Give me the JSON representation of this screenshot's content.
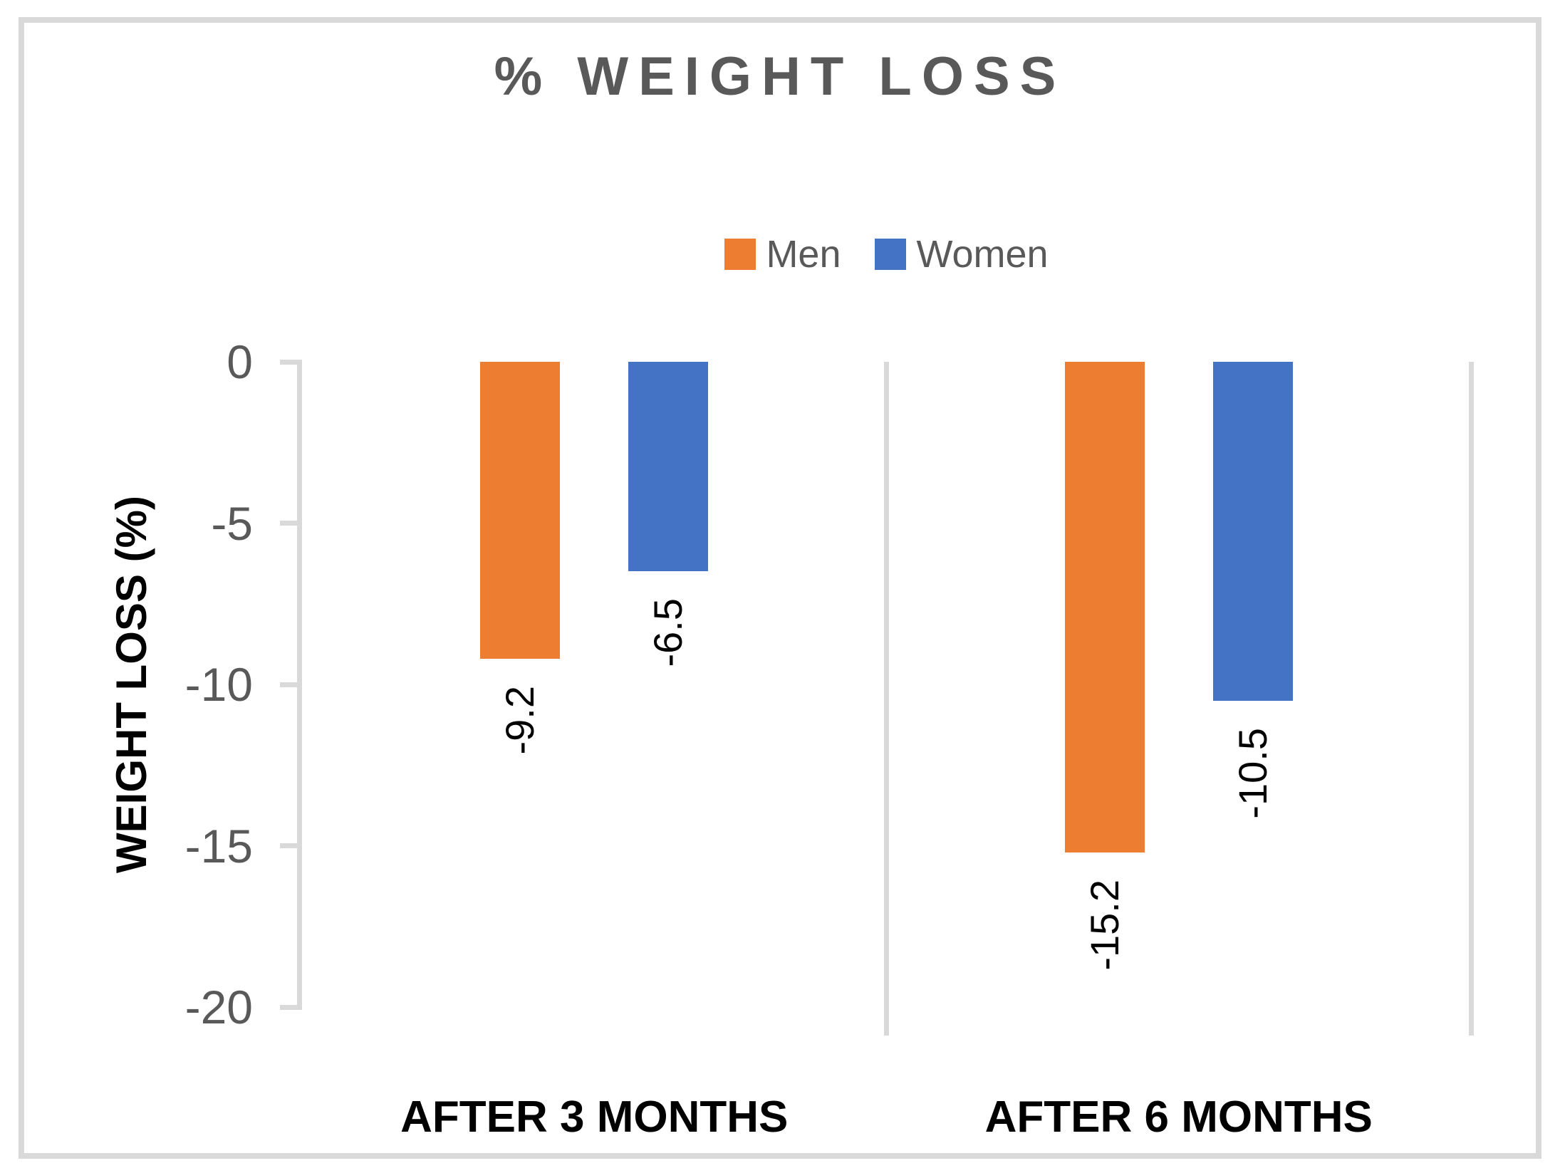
{
  "chart_data": {
    "type": "bar",
    "title": "% WEIGHT LOSS",
    "ylabel": "WEIGHT LOSS (%)",
    "categories": [
      "AFTER 3 MONTHS",
      "AFTER 6 MONTHS"
    ],
    "series": [
      {
        "name": "Men",
        "color": "#ED7D31",
        "values": [
          -9.2,
          -15.2
        ],
        "labels": [
          "-9.2",
          "-15.2"
        ]
      },
      {
        "name": "Women",
        "color": "#4472C4",
        "values": [
          -6.5,
          -10.5
        ],
        "labels": [
          "-6.5",
          "-10.5"
        ]
      }
    ],
    "y_ticks": [
      {
        "label": "0",
        "value": 0
      },
      {
        "label": "-5",
        "value": -5
      },
      {
        "label": "-10",
        "value": -10
      },
      {
        "label": "-15",
        "value": -15
      },
      {
        "label": "-20",
        "value": -20
      }
    ],
    "ylim": [
      -20,
      0
    ],
    "legend_position": "top",
    "grid": "vertical-category-boundaries",
    "colors": {
      "men": "#ED7D31",
      "women": "#4472C4",
      "title_text": "#595959",
      "tick_text": "#595959",
      "label_text": "#000000",
      "lines": "#D9D9D9",
      "background": "#FFFFFF"
    }
  }
}
